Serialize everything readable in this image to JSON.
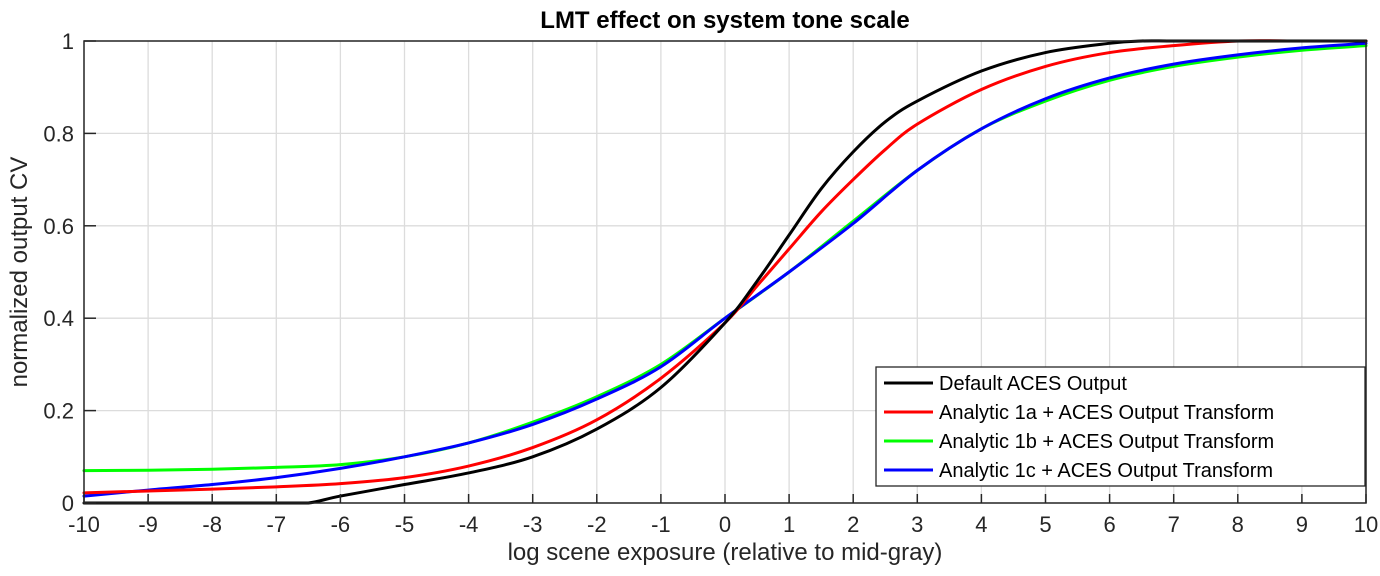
{
  "chart_data": {
    "type": "line",
    "title": "LMT effect on system tone scale",
    "xlabel": "log scene exposure (relative to mid-gray)",
    "ylabel": "normalized output CV",
    "xlim": [
      -10,
      10
    ],
    "ylim": [
      0,
      1
    ],
    "xticks": [
      -10,
      -9,
      -8,
      -7,
      -6,
      -5,
      -4,
      -3,
      -2,
      -1,
      0,
      1,
      2,
      3,
      4,
      5,
      6,
      7,
      8,
      9,
      10
    ],
    "xtick_labels": [
      "-10",
      "-9",
      "-8",
      "-7",
      "-6",
      "-5",
      "-4",
      "-3",
      "-2",
      "-1",
      "0",
      "1",
      "2",
      "3",
      "4",
      "5",
      "6",
      "7",
      "8",
      "9",
      "10"
    ],
    "yticks": [
      0,
      0.2,
      0.4,
      0.6,
      0.8,
      1
    ],
    "ytick_labels": [
      "0",
      "0.2",
      "0.4",
      "0.6",
      "0.8",
      "1"
    ],
    "grid": true,
    "legend_position": "bottom-right",
    "series": [
      {
        "name": "Default ACES Output",
        "color": "#000000",
        "x": [
          -10,
          -9,
          -8,
          -7,
          -6.5,
          -6,
          -5,
          -4,
          -3,
          -2,
          -1,
          0,
          0.5,
          1,
          1.5,
          2,
          2.5,
          3,
          4,
          5,
          6,
          6.5,
          7,
          8,
          9,
          10
        ],
        "y": [
          0,
          0,
          0,
          0,
          0,
          0.015,
          0.04,
          0.065,
          0.1,
          0.16,
          0.25,
          0.39,
          0.48,
          0.58,
          0.68,
          0.76,
          0.825,
          0.87,
          0.935,
          0.975,
          0.995,
          1.0,
          1.0,
          1.0,
          1.0,
          1.0
        ]
      },
      {
        "name": "Analytic 1a + ACES Output Transform",
        "color": "#ff0000",
        "x": [
          -10,
          -9,
          -8,
          -7,
          -6,
          -5,
          -4,
          -3,
          -2,
          -1,
          0,
          0.5,
          1,
          1.5,
          2,
          2.5,
          3,
          4,
          5,
          6,
          7,
          8,
          9,
          10
        ],
        "y": [
          0.022,
          0.026,
          0.03,
          0.035,
          0.042,
          0.055,
          0.08,
          0.12,
          0.18,
          0.27,
          0.39,
          0.47,
          0.55,
          0.63,
          0.7,
          0.765,
          0.82,
          0.895,
          0.945,
          0.975,
          0.99,
          1.0,
          1.0,
          1.0
        ]
      },
      {
        "name": "Analytic 1b + ACES Output Transform",
        "color": "#00ff00",
        "x": [
          -10,
          -9,
          -8,
          -7,
          -6,
          -5,
          -4,
          -3,
          -2,
          -1,
          0,
          1,
          2,
          3,
          4,
          5,
          6,
          7,
          8,
          9,
          10
        ],
        "y": [
          0.07,
          0.071,
          0.073,
          0.077,
          0.083,
          0.1,
          0.13,
          0.175,
          0.23,
          0.3,
          0.4,
          0.5,
          0.61,
          0.72,
          0.81,
          0.87,
          0.915,
          0.945,
          0.965,
          0.98,
          0.99
        ]
      },
      {
        "name": "Analytic 1c + ACES Output Transform",
        "color": "#0000ff",
        "x": [
          -10,
          -9,
          -8,
          -7,
          -6,
          -5,
          -4,
          -3,
          -2,
          -1,
          0,
          1,
          2,
          3,
          4,
          5,
          6,
          7,
          8,
          9,
          10
        ],
        "y": [
          0.015,
          0.028,
          0.04,
          0.055,
          0.075,
          0.1,
          0.13,
          0.17,
          0.225,
          0.295,
          0.4,
          0.5,
          0.605,
          0.72,
          0.81,
          0.875,
          0.92,
          0.95,
          0.97,
          0.985,
          0.995
        ]
      }
    ]
  }
}
